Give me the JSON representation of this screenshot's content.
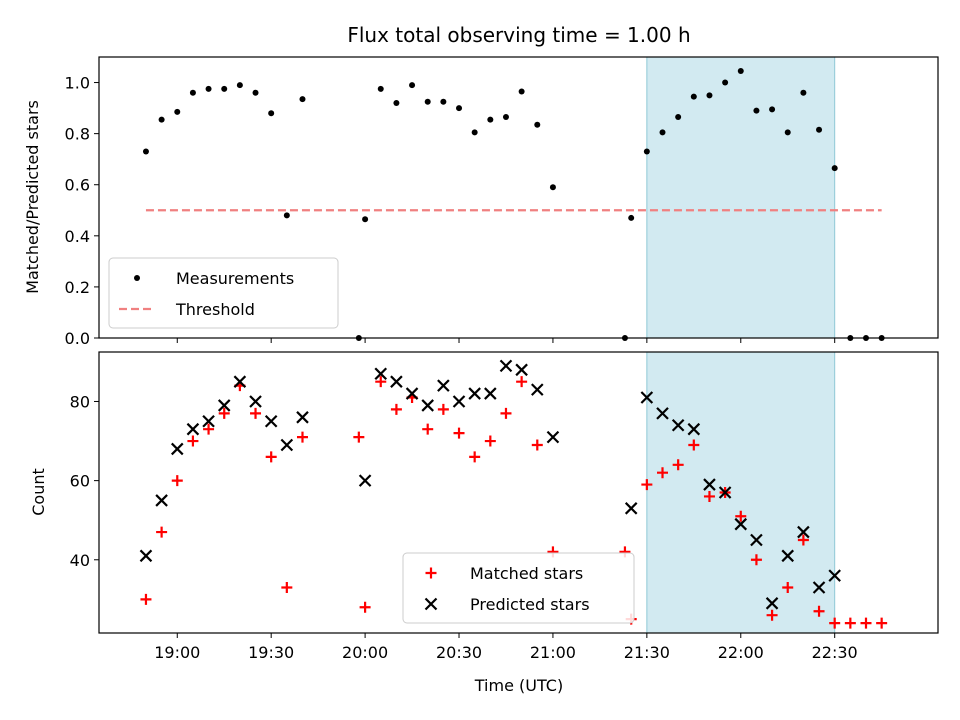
{
  "chart_data": [
    {
      "type": "scatter",
      "title": "Flux total observing time = 1.00 h",
      "xlabel": "",
      "ylabel": "Matched/Predicted stars",
      "ylim": [
        0,
        1.1
      ],
      "yticks": [
        "0.0",
        "0.2",
        "0.4",
        "0.6",
        "0.8",
        "1.0"
      ],
      "grid": false,
      "legend_position": "lower-left",
      "highlight_span": {
        "start": "21:30",
        "end": "22:30",
        "color": "#add8e6"
      },
      "series": [
        {
          "name": "Measurements",
          "marker": "dot",
          "color": "#000000",
          "points": [
            {
              "x": "18:50",
              "y": 0.73
            },
            {
              "x": "18:55",
              "y": 0.855
            },
            {
              "x": "19:00",
              "y": 0.885
            },
            {
              "x": "19:05",
              "y": 0.96
            },
            {
              "x": "19:10",
              "y": 0.975
            },
            {
              "x": "19:15",
              "y": 0.975
            },
            {
              "x": "19:20",
              "y": 0.99
            },
            {
              "x": "19:25",
              "y": 0.96
            },
            {
              "x": "19:30",
              "y": 0.88
            },
            {
              "x": "19:35",
              "y": 0.48
            },
            {
              "x": "19:40",
              "y": 0.935
            },
            {
              "x": "19:58",
              "y": 0.0
            },
            {
              "x": "20:00",
              "y": 0.465
            },
            {
              "x": "20:05",
              "y": 0.975
            },
            {
              "x": "20:10",
              "y": 0.92
            },
            {
              "x": "20:15",
              "y": 0.99
            },
            {
              "x": "20:20",
              "y": 0.925
            },
            {
              "x": "20:25",
              "y": 0.925
            },
            {
              "x": "20:30",
              "y": 0.9
            },
            {
              "x": "20:35",
              "y": 0.805
            },
            {
              "x": "20:40",
              "y": 0.855
            },
            {
              "x": "20:45",
              "y": 0.865
            },
            {
              "x": "20:50",
              "y": 0.965
            },
            {
              "x": "20:55",
              "y": 0.835
            },
            {
              "x": "21:00",
              "y": 0.59
            },
            {
              "x": "21:23",
              "y": 0.0
            },
            {
              "x": "21:25",
              "y": 0.47
            },
            {
              "x": "21:30",
              "y": 0.73
            },
            {
              "x": "21:35",
              "y": 0.805
            },
            {
              "x": "21:40",
              "y": 0.865
            },
            {
              "x": "21:45",
              "y": 0.945
            },
            {
              "x": "21:50",
              "y": 0.95
            },
            {
              "x": "21:55",
              "y": 1.0
            },
            {
              "x": "22:00",
              "y": 1.045
            },
            {
              "x": "22:05",
              "y": 0.89
            },
            {
              "x": "22:10",
              "y": 0.895
            },
            {
              "x": "22:15",
              "y": 0.805
            },
            {
              "x": "22:20",
              "y": 0.96
            },
            {
              "x": "22:25",
              "y": 0.815
            },
            {
              "x": "22:30",
              "y": 0.665
            },
            {
              "x": "22:35",
              "y": 0.0
            },
            {
              "x": "22:40",
              "y": 0.0
            },
            {
              "x": "22:45",
              "y": 0.0
            }
          ]
        },
        {
          "name": "Threshold",
          "marker": "dashed-line",
          "color": "#f08080",
          "points": [
            {
              "x": "18:50",
              "y": 0.5
            },
            {
              "x": "22:45",
              "y": 0.5
            }
          ]
        }
      ]
    },
    {
      "type": "scatter",
      "title": "",
      "xlabel": "Time (UTC)",
      "ylabel": "Count",
      "ylim": [
        21.5,
        92.5
      ],
      "yticks": [
        "40",
        "60",
        "80"
      ],
      "xticks": [
        "19:00",
        "19:30",
        "20:00",
        "20:30",
        "21:00",
        "21:30",
        "22:00",
        "22:30"
      ],
      "grid": false,
      "legend_position": "lower-center",
      "highlight_span": {
        "start": "21:30",
        "end": "22:30",
        "color": "#add8e6"
      },
      "series": [
        {
          "name": "Matched stars",
          "marker": "plus",
          "color": "#ff0000",
          "points": [
            {
              "x": "18:50",
              "y": 30
            },
            {
              "x": "18:55",
              "y": 47
            },
            {
              "x": "19:00",
              "y": 60
            },
            {
              "x": "19:05",
              "y": 70
            },
            {
              "x": "19:10",
              "y": 73
            },
            {
              "x": "19:15",
              "y": 77
            },
            {
              "x": "19:20",
              "y": 84
            },
            {
              "x": "19:25",
              "y": 77
            },
            {
              "x": "19:30",
              "y": 66
            },
            {
              "x": "19:35",
              "y": 33
            },
            {
              "x": "19:40",
              "y": 71
            },
            {
              "x": "19:58",
              "y": 71
            },
            {
              "x": "20:00",
              "y": 28
            },
            {
              "x": "20:05",
              "y": 85
            },
            {
              "x": "20:10",
              "y": 78
            },
            {
              "x": "20:15",
              "y": 81
            },
            {
              "x": "20:20",
              "y": 73
            },
            {
              "x": "20:25",
              "y": 78
            },
            {
              "x": "20:30",
              "y": 72
            },
            {
              "x": "20:35",
              "y": 66
            },
            {
              "x": "20:40",
              "y": 70
            },
            {
              "x": "20:45",
              "y": 77
            },
            {
              "x": "20:50",
              "y": 85
            },
            {
              "x": "20:55",
              "y": 69
            },
            {
              "x": "21:00",
              "y": 42
            },
            {
              "x": "21:23",
              "y": 42
            },
            {
              "x": "21:25",
              "y": 25
            },
            {
              "x": "21:30",
              "y": 59
            },
            {
              "x": "21:35",
              "y": 62
            },
            {
              "x": "21:40",
              "y": 64
            },
            {
              "x": "21:45",
              "y": 69
            },
            {
              "x": "21:50",
              "y": 56
            },
            {
              "x": "21:55",
              "y": 57
            },
            {
              "x": "22:00",
              "y": 51
            },
            {
              "x": "22:05",
              "y": 40
            },
            {
              "x": "22:10",
              "y": 26
            },
            {
              "x": "22:15",
              "y": 33
            },
            {
              "x": "22:20",
              "y": 45
            },
            {
              "x": "22:25",
              "y": 27
            },
            {
              "x": "22:30",
              "y": 24
            },
            {
              "x": "22:35",
              "y": 24
            },
            {
              "x": "22:40",
              "y": 24
            },
            {
              "x": "22:45",
              "y": 24
            }
          ]
        },
        {
          "name": "Predicted stars",
          "marker": "x",
          "color": "#000000",
          "points": [
            {
              "x": "18:50",
              "y": 41
            },
            {
              "x": "18:55",
              "y": 55
            },
            {
              "x": "19:00",
              "y": 68
            },
            {
              "x": "19:05",
              "y": 73
            },
            {
              "x": "19:10",
              "y": 75
            },
            {
              "x": "19:15",
              "y": 79
            },
            {
              "x": "19:20",
              "y": 85
            },
            {
              "x": "19:25",
              "y": 80
            },
            {
              "x": "19:30",
              "y": 75
            },
            {
              "x": "19:35",
              "y": 69
            },
            {
              "x": "19:40",
              "y": 76
            },
            {
              "x": "20:00",
              "y": 60
            },
            {
              "x": "20:05",
              "y": 87
            },
            {
              "x": "20:10",
              "y": 85
            },
            {
              "x": "20:15",
              "y": 82
            },
            {
              "x": "20:20",
              "y": 79
            },
            {
              "x": "20:25",
              "y": 84
            },
            {
              "x": "20:30",
              "y": 80
            },
            {
              "x": "20:35",
              "y": 82
            },
            {
              "x": "20:40",
              "y": 82
            },
            {
              "x": "20:45",
              "y": 89
            },
            {
              "x": "20:50",
              "y": 88
            },
            {
              "x": "20:55",
              "y": 83
            },
            {
              "x": "21:00",
              "y": 71
            },
            {
              "x": "21:25",
              "y": 53
            },
            {
              "x": "21:30",
              "y": 81
            },
            {
              "x": "21:35",
              "y": 77
            },
            {
              "x": "21:40",
              "y": 74
            },
            {
              "x": "21:45",
              "y": 73
            },
            {
              "x": "21:50",
              "y": 59
            },
            {
              "x": "21:55",
              "y": 57
            },
            {
              "x": "22:00",
              "y": 49
            },
            {
              "x": "22:05",
              "y": 45
            },
            {
              "x": "22:10",
              "y": 29
            },
            {
              "x": "22:15",
              "y": 41
            },
            {
              "x": "22:20",
              "y": 47
            },
            {
              "x": "22:25",
              "y": 33
            },
            {
              "x": "22:30",
              "y": 36
            }
          ]
        }
      ]
    }
  ]
}
